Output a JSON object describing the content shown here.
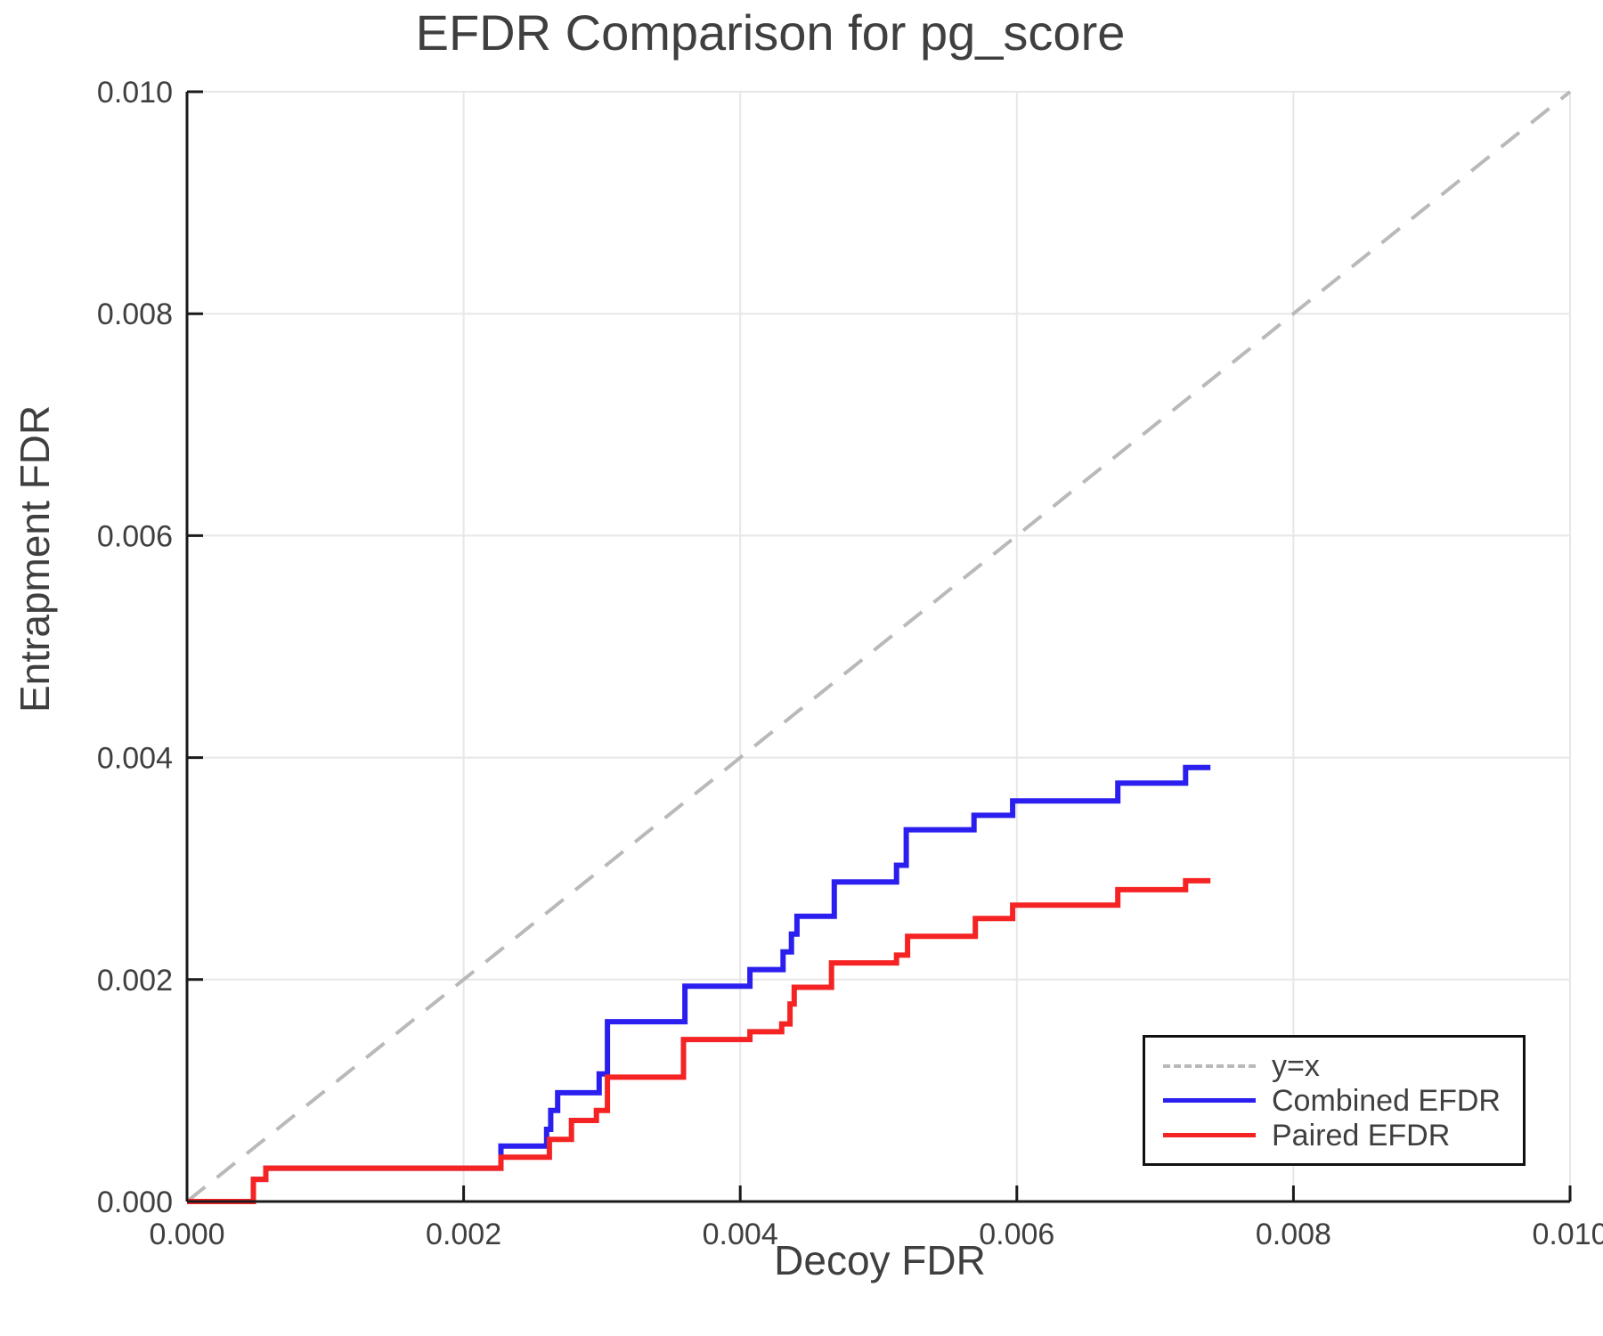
{
  "figure": {
    "title": "EFDR Comparison for pg_score",
    "xlabel": "Decoy FDR",
    "ylabel": "Entrapment FDR"
  },
  "colors": {
    "reference_line": "#b9b9b9",
    "combined_efdr": "#2a1fee",
    "paired_efdr": "#f52323",
    "axis": "#1a1a1a",
    "grid": "#e7e7e7",
    "text": "#3f3f3f"
  },
  "legend": {
    "items": [
      {
        "label": "y=x",
        "style": "dashed",
        "color": "#b9b9b9"
      },
      {
        "label": "Combined EFDR",
        "style": "solid",
        "color": "#2a1fee"
      },
      {
        "label": "Paired EFDR",
        "style": "solid",
        "color": "#f52323"
      }
    ]
  },
  "chart_data": {
    "type": "line",
    "title": "EFDR Comparison for pg_score",
    "xlabel": "Decoy FDR",
    "ylabel": "Entrapment FDR",
    "xlim": [
      0.0,
      0.01
    ],
    "ylim": [
      0.0,
      0.01
    ],
    "grid": true,
    "legend_position": "lower right",
    "xticks": [
      0.0,
      0.002,
      0.004,
      0.006,
      0.008,
      0.01
    ],
    "xtick_labels": [
      "0.000",
      "0.002",
      "0.004",
      "0.006",
      "0.008",
      "0.010"
    ],
    "yticks": [
      0.0,
      0.002,
      0.004,
      0.006,
      0.008,
      0.01
    ],
    "ytick_labels": [
      "0.000",
      "0.002",
      "0.004",
      "0.006",
      "0.008",
      "0.010"
    ],
    "series": [
      {
        "name": "y=x",
        "role": "reference",
        "line_style": "dashed",
        "color": "#b9b9b9",
        "x": [
          0.0,
          0.01
        ],
        "y": [
          0.0,
          0.01
        ]
      },
      {
        "name": "Combined EFDR",
        "role": "data",
        "line_style": "solid",
        "color": "#2a1fee",
        "step_start": [
          0.0,
          0.0
        ],
        "x_end": 0.0074,
        "steps": [
          [
            0.00048,
            0.0002
          ],
          [
            0.00057,
            0.0003
          ],
          [
            0.00227,
            0.0005
          ],
          [
            0.0026,
            0.00065
          ],
          [
            0.00263,
            0.00082
          ],
          [
            0.00268,
            0.00098
          ],
          [
            0.00298,
            0.00115
          ],
          [
            0.00304,
            0.00162
          ],
          [
            0.0036,
            0.00194
          ],
          [
            0.00407,
            0.00209
          ],
          [
            0.00431,
            0.00225
          ],
          [
            0.00437,
            0.00241
          ],
          [
            0.00441,
            0.00257
          ],
          [
            0.00468,
            0.00288
          ],
          [
            0.00513,
            0.00303
          ],
          [
            0.0052,
            0.00335
          ],
          [
            0.00569,
            0.00348
          ],
          [
            0.00597,
            0.00361
          ],
          [
            0.00673,
            0.00377
          ],
          [
            0.00722,
            0.00391
          ]
        ]
      },
      {
        "name": "Paired EFDR",
        "role": "data",
        "line_style": "solid",
        "color": "#f52323",
        "step_start": [
          0.0,
          0.0
        ],
        "x_end": 0.0074,
        "steps": [
          [
            0.00048,
            0.0002
          ],
          [
            0.00057,
            0.0003
          ],
          [
            0.00227,
            0.0004
          ],
          [
            0.00262,
            0.00056
          ],
          [
            0.00278,
            0.00073
          ],
          [
            0.00296,
            0.00082
          ],
          [
            0.00304,
            0.00112
          ],
          [
            0.00359,
            0.00146
          ],
          [
            0.00407,
            0.00153
          ],
          [
            0.0043,
            0.0016
          ],
          [
            0.00436,
            0.00178
          ],
          [
            0.00439,
            0.00193
          ],
          [
            0.00466,
            0.00215
          ],
          [
            0.00513,
            0.00222
          ],
          [
            0.00521,
            0.00239
          ],
          [
            0.0057,
            0.00255
          ],
          [
            0.00597,
            0.00267
          ],
          [
            0.00673,
            0.00281
          ],
          [
            0.00722,
            0.00289
          ]
        ]
      }
    ]
  }
}
